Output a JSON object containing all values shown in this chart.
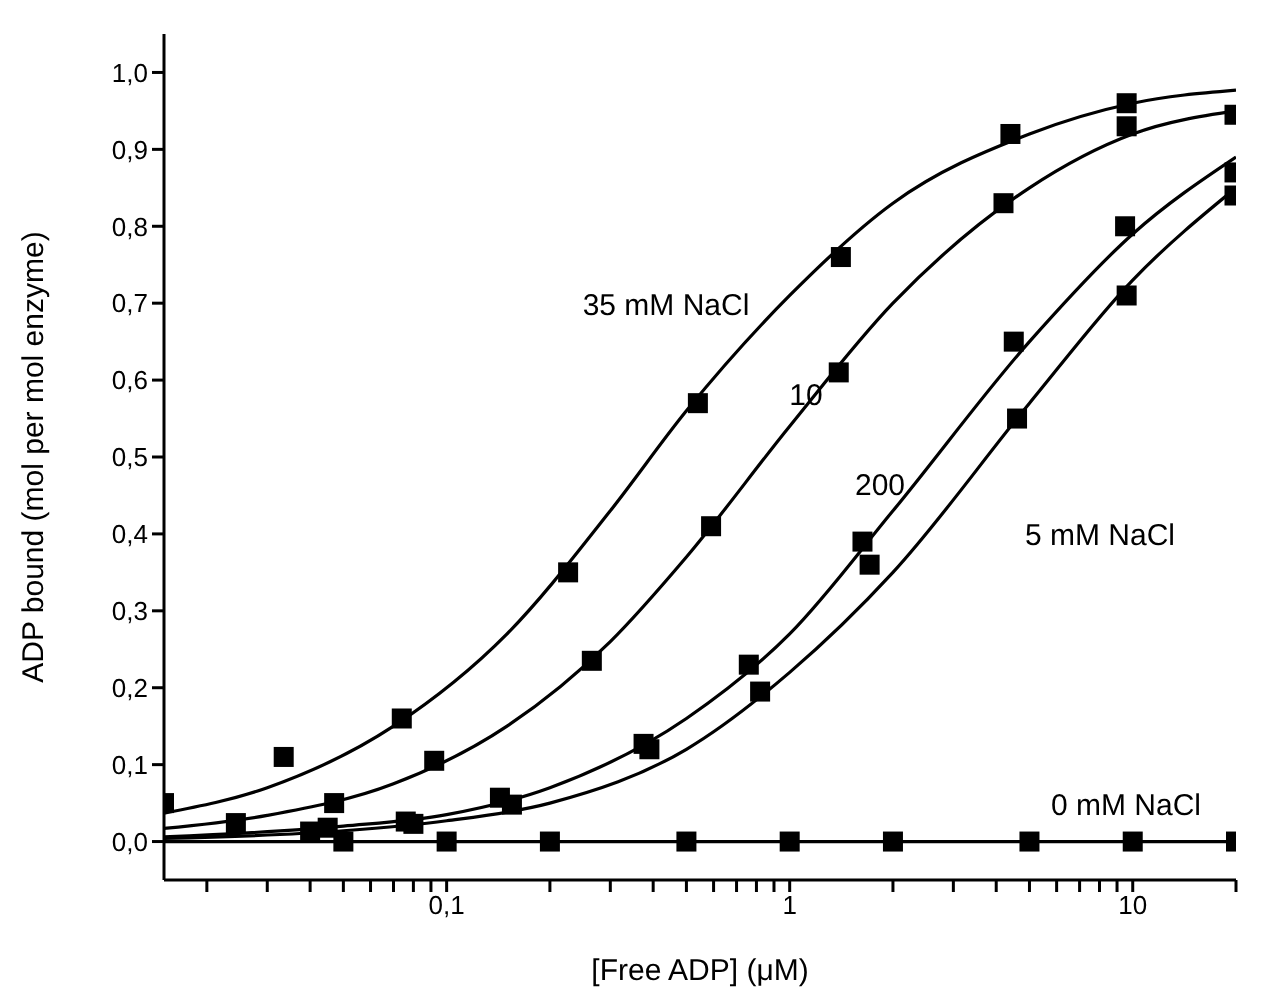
{
  "chart_data": {
    "type": "scatter",
    "xlabel": "[Free ADP] (μM)",
    "ylabel": "ADP bound  (mol per mol enzyme)",
    "log": "x",
    "grid": false,
    "legend": false,
    "marker": "square",
    "line_style": "solid",
    "xlim": [
      0.015,
      20
    ],
    "ylim": [
      -0.05,
      1.05
    ],
    "xticks": [
      {
        "value": 0.02,
        "label": null
      },
      {
        "value": 0.03,
        "label": null
      },
      {
        "value": 0.04,
        "label": null
      },
      {
        "value": 0.05,
        "label": null
      },
      {
        "value": 0.06,
        "label": null
      },
      {
        "value": 0.07,
        "label": null
      },
      {
        "value": 0.08,
        "label": null
      },
      {
        "value": 0.09,
        "label": null
      },
      {
        "value": 0.1,
        "label": "0,1"
      },
      {
        "value": 0.2,
        "label": null
      },
      {
        "value": 0.3,
        "label": null
      },
      {
        "value": 0.4,
        "label": null
      },
      {
        "value": 0.5,
        "label": null
      },
      {
        "value": 0.6,
        "label": null
      },
      {
        "value": 0.7,
        "label": null
      },
      {
        "value": 0.8,
        "label": null
      },
      {
        "value": 0.9,
        "label": null
      },
      1,
      {
        "value": 2,
        "label": null
      },
      {
        "value": 3,
        "label": null
      },
      {
        "value": 4,
        "label": null
      },
      {
        "value": 5,
        "label": null
      },
      {
        "value": 6,
        "label": null
      },
      {
        "value": 7,
        "label": null
      },
      {
        "value": 8,
        "label": null
      },
      {
        "value": 9,
        "label": null
      },
      10,
      {
        "value": 20,
        "label": null
      }
    ],
    "yticks": [
      {
        "value": 0,
        "label": "0,0"
      },
      {
        "value": 0.1,
        "label": "0,1"
      },
      {
        "value": 0.2,
        "label": "0,2"
      },
      {
        "value": 0.3,
        "label": "0,3"
      },
      {
        "value": 0.4,
        "label": "0,4"
      },
      {
        "value": 0.5,
        "label": "0,5"
      },
      {
        "value": 0.6,
        "label": "0,6"
      },
      {
        "value": 0.7,
        "label": "0,7"
      },
      {
        "value": 0.8,
        "label": "0,8"
      },
      {
        "value": 0.9,
        "label": "0,9"
      },
      {
        "value": 1.0,
        "label": "1,0"
      }
    ],
    "series": [
      {
        "color": "#000000",
        "x": [
          0.015,
          0.0335,
          0.074,
          0.226,
          0.54,
          1.41,
          4.4,
          9.6
        ],
        "values": [
          0.05,
          0.11,
          0.16,
          0.35,
          0.57,
          0.76,
          0.92,
          0.96
        ]
      },
      {
        "color": "#000000",
        "x": [
          0.0243,
          0.047,
          0.092,
          0.265,
          0.59,
          1.39,
          4.2,
          9.6,
          19.8
        ],
        "values": [
          0.024,
          0.05,
          0.105,
          0.235,
          0.41,
          0.61,
          0.83,
          0.93,
          0.945
        ]
      },
      {
        "color": "#000000",
        "x": [
          0.04,
          0.076,
          0.143,
          0.375,
          0.76,
          1.63,
          4.5,
          9.5,
          19.8
        ],
        "values": [
          0.013,
          0.026,
          0.057,
          0.127,
          0.23,
          0.39,
          0.65,
          0.8,
          0.87
        ]
      },
      {
        "color": "#000000",
        "x": [
          0.045,
          0.08,
          0.155,
          0.39,
          0.82,
          1.71,
          4.6,
          9.6,
          19.8
        ],
        "values": [
          0.018,
          0.023,
          0.048,
          0.12,
          0.195,
          0.36,
          0.55,
          0.71,
          0.84
        ]
      },
      {
        "color": "#000000",
        "x": [
          0.05,
          0.1,
          0.2,
          0.5,
          1,
          2,
          5,
          10,
          20
        ],
        "values": [
          0,
          0,
          0,
          0,
          0,
          0,
          0,
          0,
          0
        ]
      },
      {
        "type": "line",
        "marker": "none",
        "color": "#000000",
        "x": [
          0.015,
          0.03,
          0.07,
          0.15,
          0.3,
          0.5,
          1,
          2,
          5,
          10,
          20
        ],
        "values": [
          0.037,
          0.07,
          0.15,
          0.27,
          0.43,
          0.56,
          0.71,
          0.83,
          0.92,
          0.96,
          0.977
        ]
      },
      {
        "type": "line",
        "marker": "none",
        "color": "#000000",
        "x": [
          0.015,
          0.03,
          0.07,
          0.15,
          0.3,
          0.5,
          1,
          2,
          5,
          10,
          20
        ],
        "values": [
          0.017,
          0.034,
          0.075,
          0.15,
          0.26,
          0.37,
          0.54,
          0.7,
          0.85,
          0.92,
          0.95
        ]
      },
      {
        "type": "line",
        "marker": "none",
        "color": "#000000",
        "x": [
          0.015,
          0.05,
          0.1,
          0.2,
          0.5,
          1,
          2,
          5,
          10,
          20
        ],
        "values": [
          0.006,
          0.02,
          0.035,
          0.07,
          0.16,
          0.27,
          0.43,
          0.65,
          0.79,
          0.89
        ]
      },
      {
        "type": "line",
        "marker": "none",
        "color": "#000000",
        "x": [
          0.015,
          0.05,
          0.1,
          0.2,
          0.5,
          1,
          2,
          5,
          10,
          20
        ],
        "values": [
          0.004,
          0.014,
          0.027,
          0.05,
          0.12,
          0.22,
          0.35,
          0.57,
          0.73,
          0.85
        ]
      },
      {
        "type": "line",
        "marker": "none",
        "color": "#000000",
        "x": [
          0.015,
          20
        ],
        "values": [
          0,
          0
        ]
      }
    ],
    "annotations": [
      "35 mM NaCl",
      "10",
      "200",
      "5 mM NaCl",
      "0 mM NaCl"
    ]
  }
}
